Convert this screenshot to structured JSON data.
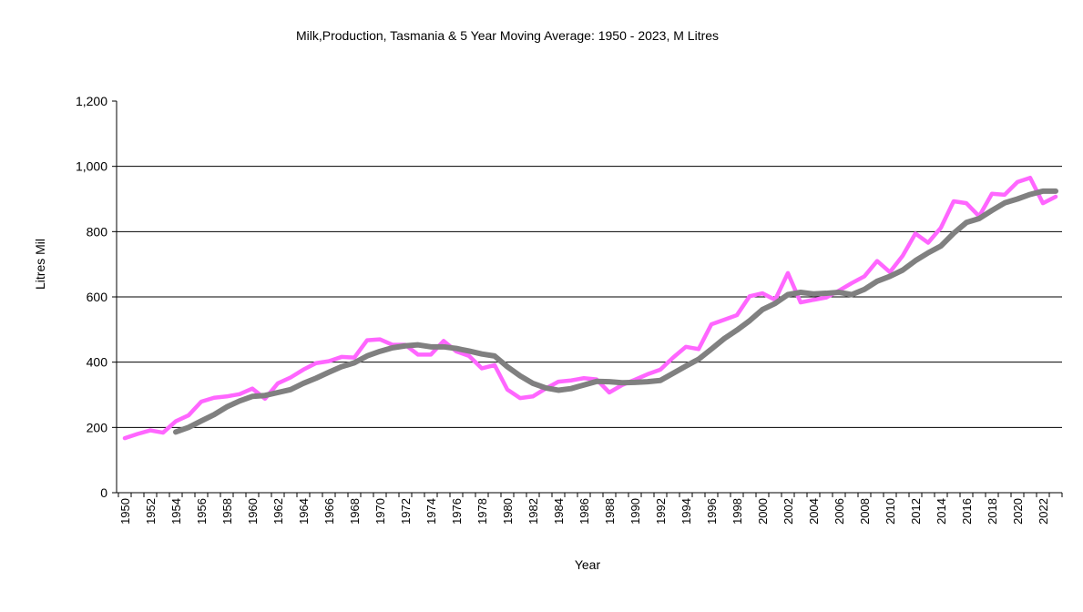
{
  "chart_data": {
    "type": "line",
    "title": "Milk,Production, Tasmania & 5 Year Moving Average: 1950 - 2023, M Litres",
    "xlabel": "Year",
    "ylabel": "Litres Mil",
    "ylim": [
      0,
      1200
    ],
    "yticks": [
      0,
      200,
      400,
      600,
      800,
      1000,
      1200
    ],
    "ytick_labels": [
      "0",
      "200",
      "400",
      "600",
      "800",
      "1,000",
      "1,200"
    ],
    "x_start": 1950,
    "x_end": 2023,
    "x_label_step": 2,
    "grid": "horizontal",
    "legend": "none",
    "series": [
      {
        "id": "production",
        "color": "#ff66ff",
        "start_year": 1950,
        "values": [
          167,
          180,
          191,
          184,
          219,
          237,
          279,
          291,
          295,
          302,
          319,
          288,
          335,
          353,
          377,
          397,
          403,
          416,
          414,
          467,
          470,
          453,
          453,
          423,
          423,
          465,
          433,
          419,
          381,
          391,
          316,
          290,
          295,
          319,
          340,
          344,
          351,
          347,
          307,
          330,
          346,
          363,
          377,
          414,
          447,
          440,
          516,
          530,
          544,
          602,
          611,
          591,
          673,
          583,
          591,
          598,
          619,
          642,
          663,
          710,
          676,
          726,
          794,
          766,
          812,
          893,
          887,
          847,
          916,
          913,
          952,
          965,
          887,
          907
        ]
      },
      {
        "id": "moving_average",
        "color": "#808080",
        "start_year": 1954,
        "values": [
          186,
          200,
          220,
          239,
          263,
          281,
          295,
          298,
          307,
          316,
          335,
          351,
          369,
          386,
          398,
          419,
          433,
          444,
          450,
          453,
          447,
          447,
          442,
          434,
          425,
          419,
          386,
          358,
          335,
          321,
          314,
          319,
          330,
          341,
          340,
          337,
          338,
          340,
          344,
          366,
          388,
          409,
          440,
          472,
          498,
          527,
          561,
          580,
          607,
          614,
          609,
          611,
          614,
          607,
          623,
          648,
          663,
          682,
          711,
          735,
          756,
          795,
          828,
          840,
          865,
          888,
          900,
          914,
          924,
          924
        ]
      }
    ]
  }
}
